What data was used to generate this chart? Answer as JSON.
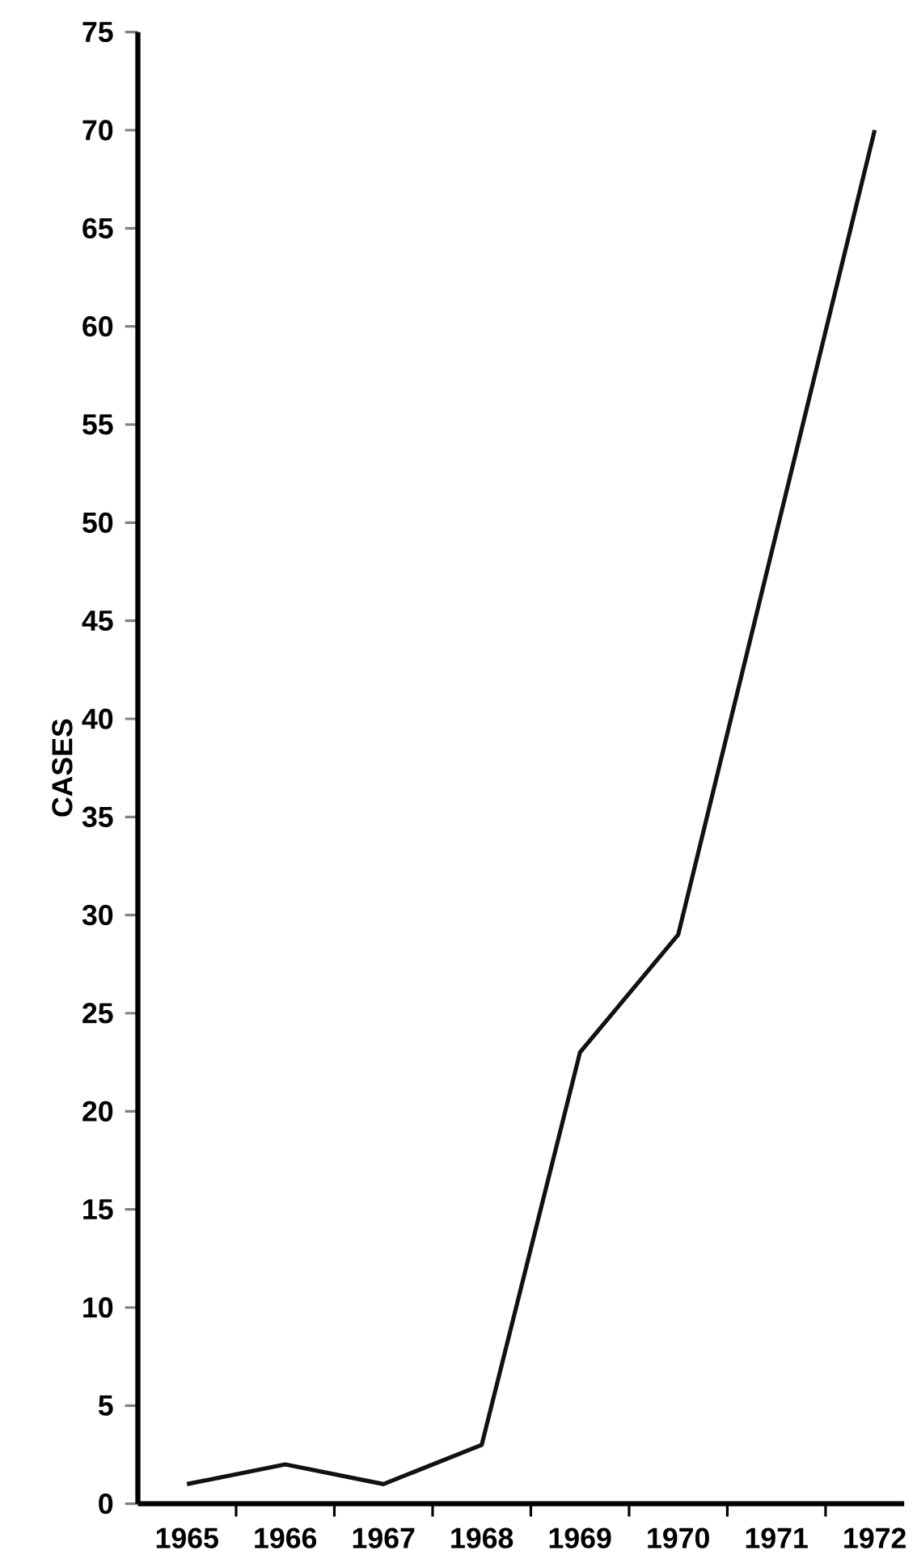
{
  "chart_data": {
    "type": "line",
    "ylabel": "CASES",
    "x": [
      1965,
      1966,
      1967,
      1968,
      1969,
      1970,
      1972
    ],
    "values": [
      1,
      2,
      1,
      3,
      23,
      29,
      70
    ],
    "color": "#111111",
    "xlim": [
      1964.5,
      1972.3
    ],
    "xticks": [
      1965,
      1966,
      1967,
      1968,
      1969,
      1970,
      1971,
      1972,
      {
        "value": 1965.5,
        "label": null
      },
      {
        "value": 1966.5,
        "label": null
      },
      {
        "value": 1967.5,
        "label": null
      },
      {
        "value": 1968.5,
        "label": null
      },
      {
        "value": 1969.5,
        "label": null
      },
      {
        "value": 1970.5,
        "label": null
      },
      {
        "value": 1971.5,
        "label": null
      }
    ],
    "ylim": [
      0,
      75
    ],
    "yticks": [
      0,
      5,
      10,
      15,
      20,
      25,
      30,
      35,
      40,
      45,
      50,
      55,
      60,
      65,
      70,
      75
    ],
    "grid": false,
    "marker": "none",
    "line_style": "solid"
  }
}
